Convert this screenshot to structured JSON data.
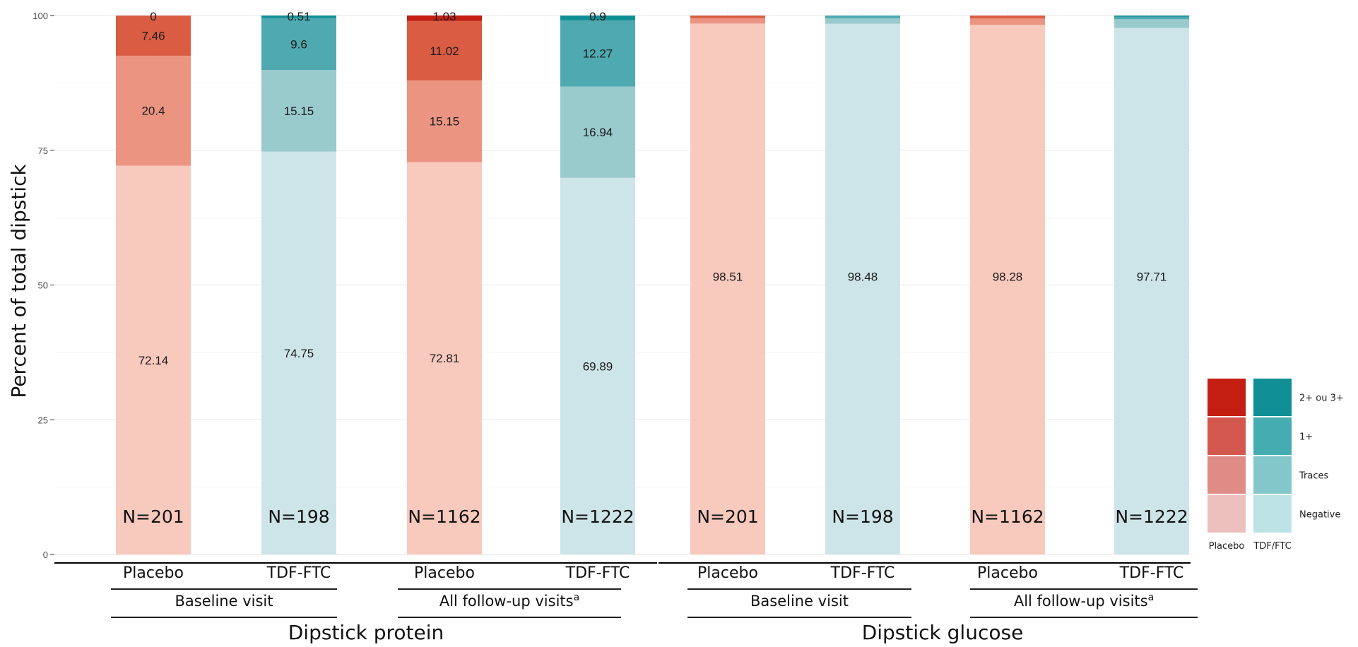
{
  "chart_data": {
    "type": "bar",
    "stacked": true,
    "ylabel": "Percent of total dipstick",
    "ylim": [
      0,
      100
    ],
    "yticks": [
      0,
      25,
      50,
      75,
      100
    ],
    "grid": true,
    "legend_position": "right",
    "categories": [
      "Negative",
      "Traces",
      "1+",
      "2+ ou 3+"
    ],
    "panels": [
      {
        "name": "Dipstick protein",
        "groups": [
          {
            "name": "Baseline visit",
            "superscript": "",
            "bars": [
              {
                "name": "Placebo",
                "arm": "placebo",
                "n_label": "N=201",
                "values": [
                  72.14,
                  20.4,
                  7.46,
                  0
                ]
              },
              {
                "name": "TDF-FTC",
                "arm": "tdf",
                "n_label": "N=198",
                "values": [
                  74.75,
                  15.15,
                  9.6,
                  0.51
                ]
              }
            ]
          },
          {
            "name": "All follow-up visits",
            "superscript": "a",
            "bars": [
              {
                "name": "Placebo",
                "arm": "placebo",
                "n_label": "N=1162",
                "values": [
                  72.81,
                  15.15,
                  11.02,
                  1.03
                ]
              },
              {
                "name": "TDF-FTC",
                "arm": "tdf",
                "n_label": "N=1222",
                "values": [
                  69.89,
                  16.94,
                  12.27,
                  0.9
                ]
              }
            ]
          }
        ]
      },
      {
        "name": "Dipstick glucose",
        "groups": [
          {
            "name": "Baseline visit",
            "superscript": "",
            "bars": [
              {
                "name": "Placebo",
                "arm": "placebo",
                "n_label": "N=201",
                "values": [
                  98.51,
                  1.0,
                  0.49,
                  0
                ]
              },
              {
                "name": "TDF-FTC",
                "arm": "tdf",
                "n_label": "N=198",
                "values": [
                  98.48,
                  1.0,
                  0.52,
                  0
                ]
              }
            ]
          },
          {
            "name": "All follow-up visits",
            "superscript": "a",
            "bars": [
              {
                "name": "Placebo",
                "arm": "placebo",
                "n_label": "N=1162",
                "values": [
                  98.28,
                  1.2,
                  0.52,
                  0
                ]
              },
              {
                "name": "TDF-FTC",
                "arm": "tdf",
                "n_label": "N=1222",
                "values": [
                  97.71,
                  1.6,
                  0.45,
                  0.24
                ]
              }
            ]
          }
        ]
      }
    ],
    "legend": {
      "columns": [
        "Placebo",
        "TDF/FTC"
      ],
      "rows": [
        "2+ ou 3+",
        "1+",
        "Traces",
        "Negative"
      ]
    },
    "colors": {
      "placebo": [
        "#f8c9bd",
        "#ec9482",
        "#d95c43",
        "#c41e12"
      ],
      "tdf": [
        "#cde5e8",
        "#99cacc",
        "#4eaab0",
        "#0f8f95"
      ],
      "legend_placebo": [
        "#ebc0bd",
        "#e08c86",
        "#d4574f",
        "#c41e12"
      ],
      "legend_tdf": [
        "#bde3e6",
        "#84c7cb",
        "#45acb1",
        "#0f8f95"
      ]
    },
    "label_threshold": 2
  }
}
